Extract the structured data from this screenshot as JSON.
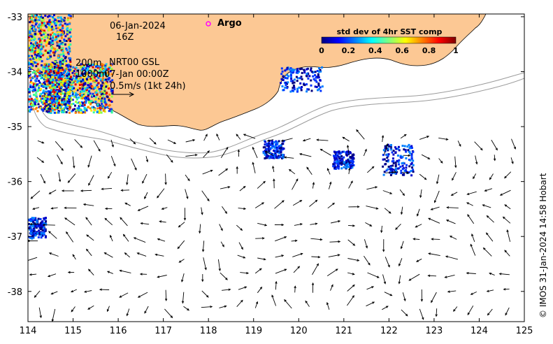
{
  "map": {
    "date": "06-Jan-2024",
    "hour": "16Z",
    "legend_argo": "Argo",
    "depth_200": "200m",
    "depth_1000": "1000m",
    "current_source": "NRT00 GSL",
    "current_time": "07-Jan 00:00Z",
    "scale_arrow": "0.5m/s (1kt 24h)",
    "credit": "© IMOS 31-Jan-2024 14:58 Hobart",
    "lon_ticks": [
      "114",
      "115",
      "116",
      "117",
      "118",
      "119",
      "120",
      "121",
      "122",
      "123",
      "124",
      "125"
    ],
    "lat_ticks": [
      "-33",
      "-34",
      "-35",
      "-36",
      "-37",
      "-38"
    ],
    "lon_range": [
      114,
      125
    ],
    "lat_range": [
      -38.55,
      -32.95
    ],
    "colorbar": {
      "title": "std dev of 4hr SST comp",
      "ticks": [
        "0",
        "0.2",
        "0.4",
        "0.6",
        "0.8",
        "1"
      ],
      "range": [
        0,
        1
      ],
      "colors": [
        "#00007f",
        "#0000ff",
        "#007fff",
        "#00ffff",
        "#7fff7f",
        "#ffff00",
        "#ff7f00",
        "#ff0000",
        "#7f0000"
      ]
    },
    "colors": {
      "land": "#fcc894",
      "ocean": "#ffffff",
      "isobath": "#9a9a9a",
      "argo_marker": "#ff00ff"
    }
  }
}
